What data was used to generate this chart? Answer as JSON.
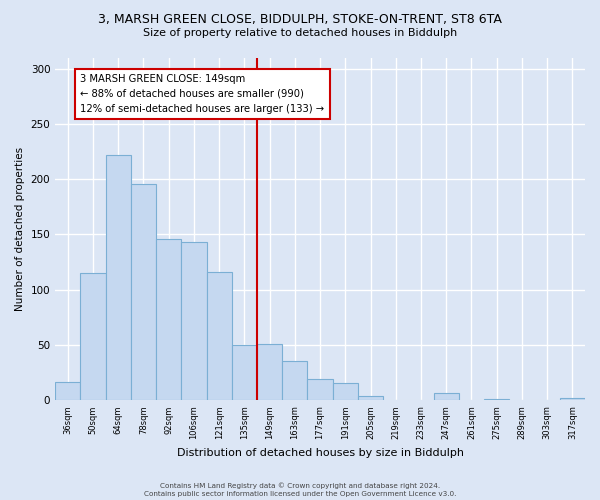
{
  "title_line1": "3, MARSH GREEN CLOSE, BIDDULPH, STOKE-ON-TRENT, ST8 6TA",
  "title_line2": "Size of property relative to detached houses in Biddulph",
  "xlabel": "Distribution of detached houses by size in Biddulph",
  "ylabel": "Number of detached properties",
  "categories": [
    "36sqm",
    "50sqm",
    "64sqm",
    "78sqm",
    "92sqm",
    "106sqm",
    "121sqm",
    "135sqm",
    "149sqm",
    "163sqm",
    "177sqm",
    "191sqm",
    "205sqm",
    "219sqm",
    "233sqm",
    "247sqm",
    "261sqm",
    "275sqm",
    "289sqm",
    "303sqm",
    "317sqm"
  ],
  "values": [
    17,
    115,
    222,
    196,
    146,
    143,
    116,
    50,
    51,
    36,
    19,
    16,
    4,
    0,
    0,
    7,
    0,
    1,
    0,
    0,
    2
  ],
  "bar_color": "#c5d8f0",
  "bar_edge_color": "#7bafd4",
  "vline_color": "#cc0000",
  "annotation_title": "3 MARSH GREEN CLOSE: 149sqm",
  "annotation_line1": "← 88% of detached houses are smaller (990)",
  "annotation_line2": "12% of semi-detached houses are larger (133) →",
  "annotation_box_color": "#cc0000",
  "ylim": [
    0,
    310
  ],
  "yticks": [
    0,
    50,
    100,
    150,
    200,
    250,
    300
  ],
  "footer1": "Contains HM Land Registry data © Crown copyright and database right 2024.",
  "footer2": "Contains public sector information licensed under the Open Government Licence v3.0.",
  "background_color": "#dce6f5",
  "plot_background_color": "#dce6f5"
}
